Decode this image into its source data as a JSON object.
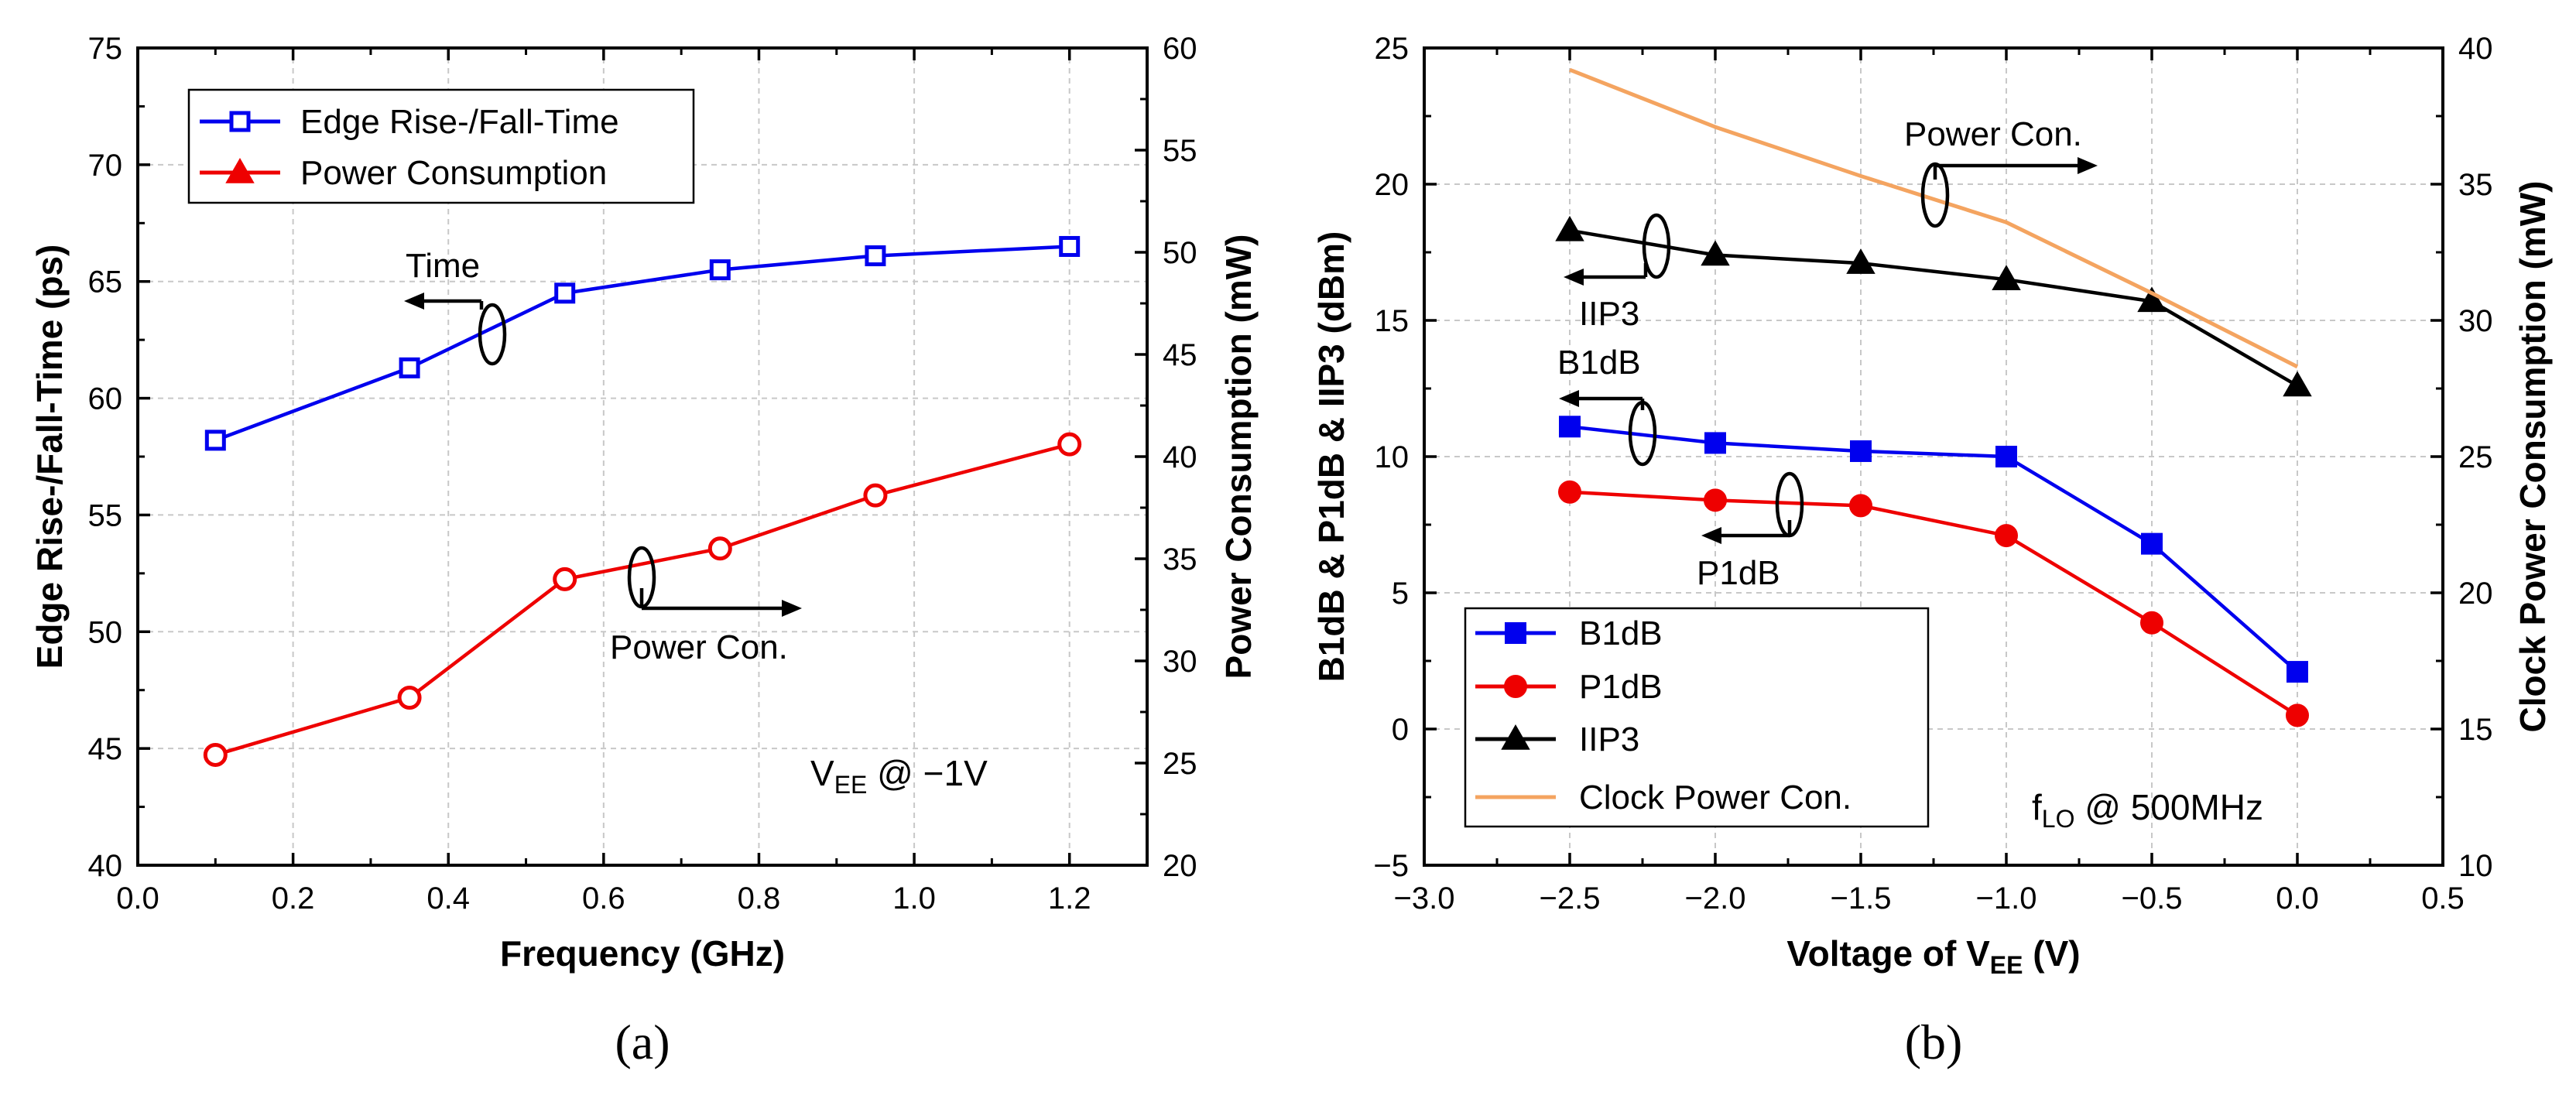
{
  "chart_data": [
    {
      "id": "a",
      "type": "line",
      "panel_label": "(a)",
      "title": "",
      "xlabel": "Frequency (GHz)",
      "ylabel_left": "Edge Rise-/Fall-Time (ps)",
      "ylabel_right": "Power Consumption (mW)",
      "xlim": [
        0.0,
        1.3
      ],
      "xticks": [
        0.0,
        0.2,
        0.4,
        0.6,
        0.8,
        1.0,
        1.2
      ],
      "xtick_labels": [
        "0.0",
        "0.2",
        "0.4",
        "0.6",
        "0.8",
        "1.0",
        "1.2"
      ],
      "ylim_left": [
        40,
        75
      ],
      "yticks_left": [
        40,
        45,
        50,
        55,
        60,
        65,
        70,
        75
      ],
      "ytick_labels_left": [
        "40",
        "45",
        "50",
        "55",
        "60",
        "65",
        "70",
        "75"
      ],
      "ylim_right": [
        20,
        60
      ],
      "yticks_right": [
        20,
        25,
        30,
        35,
        40,
        45,
        50,
        55,
        60
      ],
      "ytick_labels_right": [
        "20",
        "25",
        "30",
        "35",
        "40",
        "45",
        "50",
        "55",
        "60"
      ],
      "grid": true,
      "legend_position": "top-left",
      "series": [
        {
          "name": "Edge Rise-/Fall-Time",
          "axis": "left",
          "color": "#0000ee",
          "marker": "square-open",
          "x": [
            0.1,
            0.35,
            0.55,
            0.75,
            0.95,
            1.2
          ],
          "y": [
            58.2,
            61.3,
            64.5,
            65.5,
            66.1,
            66.5
          ]
        },
        {
          "name": "Power Consumption",
          "axis": "right",
          "color": "#ee0000",
          "marker": "circle-open",
          "legend_marker": "triangle-filled",
          "x": [
            0.1,
            0.35,
            0.55,
            0.75,
            0.95,
            1.2
          ],
          "y": [
            25.4,
            28.2,
            34.0,
            35.5,
            38.1,
            40.6
          ]
        }
      ],
      "annotations": [
        {
          "id": "time",
          "text": "Time",
          "direction": "left"
        },
        {
          "id": "power",
          "text": "Power Con.",
          "direction": "right"
        },
        {
          "id": "vee",
          "text_main": "V",
          "text_sub": "EE",
          "text_rest": " @ −1V"
        }
      ]
    },
    {
      "id": "b",
      "type": "line",
      "panel_label": "(b)",
      "title": "",
      "xlabel_main": "Voltage of V",
      "xlabel_sub": "EE",
      "xlabel_rest": " (V)",
      "ylabel_left": "B1dB & P1dB & IIP3 (dBm)",
      "ylabel_right": "Clock Power Consumption (mW)",
      "xlim": [
        -3.0,
        0.5
      ],
      "xticks": [
        -3.0,
        -2.5,
        -2.0,
        -1.5,
        -1.0,
        -0.5,
        0.0,
        0.5
      ],
      "xtick_labels": [
        "−3.0",
        "−2.5",
        "−2.0",
        "−1.5",
        "−1.0",
        "−0.5",
        "0.0",
        "0.5"
      ],
      "ylim_left": [
        -5,
        25
      ],
      "yticks_left": [
        -5,
        0,
        5,
        10,
        15,
        20,
        25
      ],
      "ytick_labels_left": [
        "−5",
        "0",
        "5",
        "10",
        "15",
        "20",
        "25"
      ],
      "ylim_right": [
        10,
        40
      ],
      "yticks_right": [
        10,
        15,
        20,
        25,
        30,
        35,
        40
      ],
      "ytick_labels_right": [
        "10",
        "15",
        "20",
        "25",
        "30",
        "35",
        "40"
      ],
      "grid": true,
      "legend_position": "bottom-left",
      "series": [
        {
          "name": "B1dB",
          "axis": "left",
          "color": "#0000ee",
          "marker": "square-filled",
          "x": [
            -2.5,
            -2.0,
            -1.5,
            -1.0,
            -0.5,
            0.0
          ],
          "y": [
            11.1,
            10.5,
            10.2,
            10.0,
            6.8,
            2.1
          ]
        },
        {
          "name": "P1dB",
          "axis": "left",
          "color": "#ee0000",
          "marker": "circle-filled",
          "x": [
            -2.5,
            -2.0,
            -1.5,
            -1.0,
            -0.5,
            0.0
          ],
          "y": [
            8.7,
            8.4,
            8.2,
            7.1,
            3.9,
            0.5
          ]
        },
        {
          "name": "IIP3",
          "axis": "left",
          "color": "#000000",
          "marker": "triangle-filled",
          "x": [
            -2.5,
            -2.0,
            -1.5,
            -1.0,
            -0.5,
            0.0
          ],
          "y": [
            18.3,
            17.4,
            17.1,
            16.5,
            15.7,
            12.6
          ]
        },
        {
          "name": "Clock Power Con.",
          "axis": "right",
          "color": "#f4a460",
          "marker": "none",
          "x": [
            -2.5,
            -2.0,
            -1.5,
            -1.0,
            -0.5,
            0.0
          ],
          "y": [
            39.2,
            37.1,
            35.3,
            33.6,
            31.0,
            28.3
          ]
        }
      ],
      "annotations": [
        {
          "id": "power",
          "text": "Power Con.",
          "direction": "right"
        },
        {
          "id": "iip3",
          "text": "IIP3",
          "direction": "left"
        },
        {
          "id": "b1db",
          "text": "B1dB",
          "direction": "left"
        },
        {
          "id": "p1db",
          "text": "P1dB",
          "direction": "left"
        },
        {
          "id": "flo",
          "text_main": "f",
          "text_sub": "LO",
          "text_rest": " @ 500MHz"
        }
      ]
    }
  ]
}
